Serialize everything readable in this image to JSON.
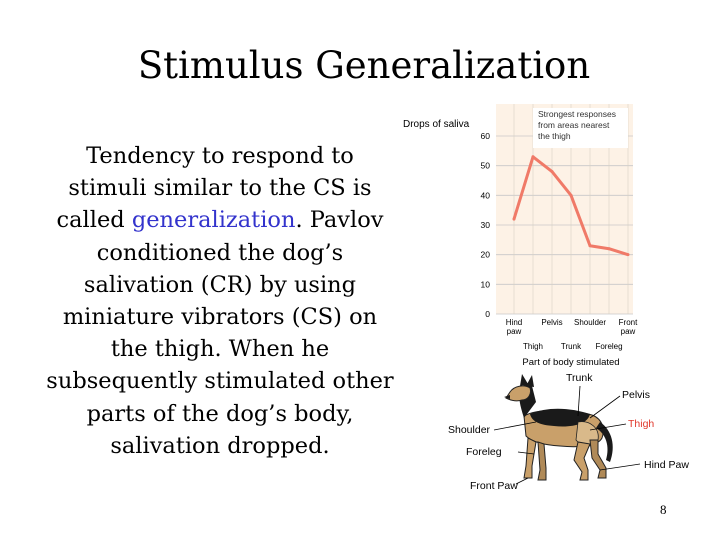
{
  "slide": {
    "title": "Stimulus Generalization",
    "body_before": "Tendency to respond to stimuli similar to the CS is called ",
    "body_highlight": "generalization",
    "body_after": ". Pavlov conditioned the dog’s salivation (CR) by using miniature vibrators (CS) on the thigh. When he subsequently stimulated other parts of the dog’s body, salivation dropped.",
    "page_number": "8",
    "highlight_color": "#3333cc"
  },
  "chart_data": {
    "type": "line",
    "categories": [
      "Hind paw",
      "Thigh",
      "Pelvis",
      "Trunk",
      "Shoulder",
      "Foreleg",
      "Front paw"
    ],
    "category_labels_top": [
      "Hind\npaw",
      "Pelvis",
      "Shoulder",
      "Front\npaw"
    ],
    "category_labels_bottom": [
      "Thigh",
      "Trunk",
      "Foreleg"
    ],
    "values": [
      32,
      53,
      48,
      40,
      23,
      22,
      20
    ],
    "yticks": [
      "0",
      "10",
      "20",
      "30",
      "40",
      "50",
      "60"
    ],
    "ylim": [
      0,
      60
    ],
    "ylabel": "Drops of saliva",
    "xlabel": "Part of body stimulated",
    "annotation": "Strongest responses from areas nearest the thigh",
    "line_color": "#f07a68",
    "background_color": "#fdf2e6"
  },
  "diagram": {
    "labels": {
      "trunk": "Trunk",
      "pelvis": "Pelvis",
      "thigh": "Thigh",
      "shoulder": "Shoulder",
      "foreleg": "Foreleg",
      "hind_paw": "Hind Paw",
      "front_paw": "Front Paw"
    },
    "thigh_color": "#e0382c"
  }
}
